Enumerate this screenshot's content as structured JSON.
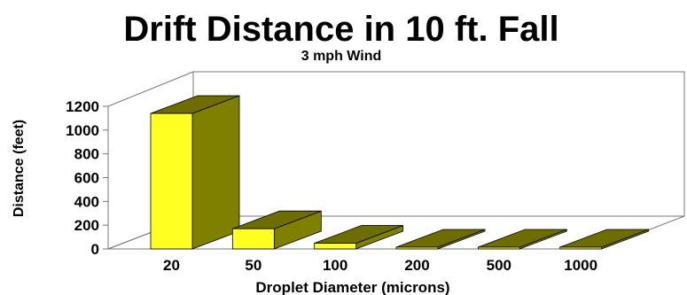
{
  "chart_data": {
    "type": "bar",
    "title": "Drift Distance in 10 ft. Fall",
    "subtitle": "3 mph Wind",
    "xlabel": "Droplet Diameter (microns)",
    "ylabel": "Distance (feet)",
    "categories": [
      "20",
      "50",
      "100",
      "200",
      "500",
      "1000"
    ],
    "values": [
      1140,
      170,
      48,
      15,
      3,
      1
    ],
    "ylim": [
      0,
      1200
    ],
    "yticks": [
      "0",
      "200",
      "400",
      "600",
      "800",
      "1000",
      "1200"
    ],
    "grid": false,
    "legend": "none",
    "style": "3d",
    "colors": {
      "bar_front": "#ffff22",
      "bar_side": "#808000",
      "bar_top": "#6e6e00",
      "axis": "#777777",
      "text": "#000000"
    }
  }
}
